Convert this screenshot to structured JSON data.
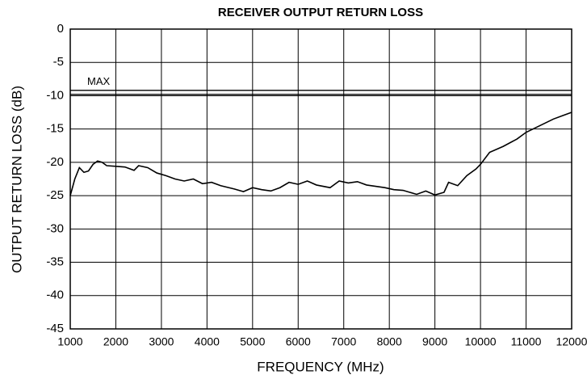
{
  "chart_data": {
    "type": "line",
    "title": "RECEIVER OUTPUT RETURN LOSS",
    "xlabel": "FREQUENCY (MHz)",
    "ylabel": "OUTPUT RETURN LOSS (dB)",
    "x": [
      1000,
      1100,
      1200,
      1300,
      1400,
      1500,
      1600,
      1700,
      1800,
      2000,
      2200,
      2400,
      2500,
      2700,
      2900,
      3100,
      3300,
      3500,
      3700,
      3900,
      4100,
      4300,
      4600,
      4800,
      5000,
      5200,
      5400,
      5600,
      5800,
      6000,
      6200,
      6400,
      6700,
      6900,
      7100,
      7300,
      7500,
      7700,
      7900,
      8100,
      8300,
      8600,
      8800,
      9000,
      9200,
      9300,
      9500,
      9700,
      9900,
      10000,
      10200,
      10500,
      10800,
      11000,
      11300,
      11600,
      11800,
      12000
    ],
    "series": [
      {
        "color": "#000000",
        "values": [
          -25,
          -22.5,
          -20.8,
          -21.5,
          -21.3,
          -20.3,
          -19.8,
          -20,
          -20.5,
          -20.6,
          -20.7,
          -21.2,
          -20.5,
          -20.8,
          -21.6,
          -22,
          -22.5,
          -22.8,
          -22.5,
          -23.2,
          -23,
          -23.5,
          -24,
          -24.4,
          -23.8,
          -24.1,
          -24.3,
          -23.8,
          -23,
          -23.3,
          -22.8,
          -23.4,
          -23.8,
          -22.8,
          -23.1,
          -22.9,
          -23.4,
          -23.6,
          -23.8,
          -24.1,
          -24.2,
          -24.8,
          -24.3,
          -24.9,
          -24.5,
          -23,
          -23.5,
          -22,
          -21,
          -20.3,
          -18.5,
          -17.6,
          -16.5,
          -15.5,
          -14.5,
          -13.5,
          -13,
          -12.5
        ]
      }
    ],
    "reference_line": {
      "label": "MAX",
      "value": -9.5
    },
    "xlim": [
      1000,
      12000
    ],
    "xticks": [
      1000,
      2000,
      3000,
      4000,
      5000,
      6000,
      7000,
      8000,
      9000,
      10000,
      11000,
      12000
    ],
    "ylim": [
      -45,
      0
    ],
    "yticks": [
      0,
      -5,
      -10,
      -15,
      -20,
      -25,
      -30,
      -35,
      -40,
      -45
    ],
    "grid": true
  }
}
